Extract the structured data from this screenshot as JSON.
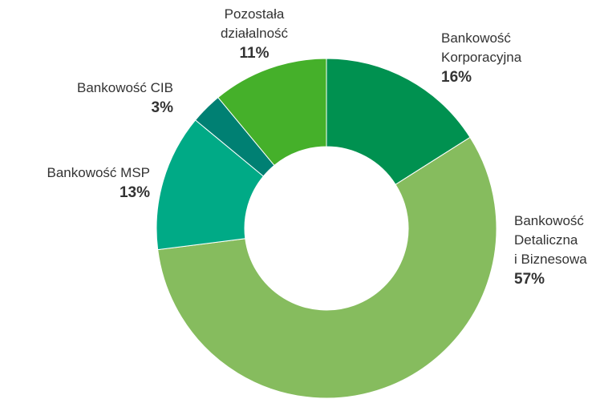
{
  "chart_data": {
    "type": "donut",
    "categories": [
      "Bankowość\nKorporacyjna",
      "Bankowość\nDetaliczna\ni Biznesowa",
      "Bankowość MSP",
      "Bankowość CIB",
      "Pozostała\ndziałalność"
    ],
    "values": [
      16,
      57,
      13,
      3,
      11
    ],
    "value_labels": [
      "16%",
      "57%",
      "13%",
      "3%",
      "11%"
    ],
    "colors": [
      "#009150",
      "#86bc5e",
      "#00aa86",
      "#008073",
      "#45b02a"
    ]
  }
}
